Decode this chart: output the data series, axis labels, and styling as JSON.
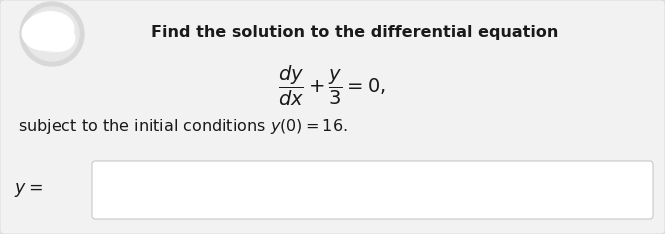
{
  "background_color": "#e5e5e5",
  "card_color": "#f2f2f2",
  "title_text": "Find the solution to the differential equation",
  "equation_text": "$\\dfrac{dy}{dx} + \\dfrac{y}{3} = 0,$",
  "condition_text": "subject to the initial conditions $y(0) = 16.$",
  "label_text": "$y =$",
  "title_fontsize": 11.5,
  "body_fontsize": 11.5,
  "eq_fontsize": 14,
  "input_box_color": "#ffffff",
  "input_box_edgecolor": "#c8c8c8",
  "text_color": "#1a1a1a"
}
